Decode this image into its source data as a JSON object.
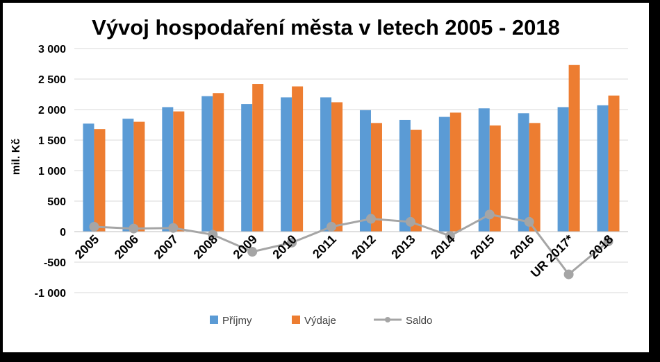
{
  "chart_data": {
    "type": "bar",
    "title": "Vývoj hospodaření města v letech 2005 - 2018",
    "xlabel": "",
    "ylabel": "mil. Kč",
    "ylim": [
      -1000,
      3000
    ],
    "y_ticks": [
      -1000,
      -500,
      0,
      500,
      1000,
      1500,
      2000,
      2500,
      3000
    ],
    "y_tick_labels": [
      "-1 000",
      "-500",
      "0",
      "500",
      "1 000",
      "1 500",
      "2 000",
      "2 500",
      "3 000"
    ],
    "grid": true,
    "legend_position": "bottom",
    "categories": [
      "2005",
      "2006",
      "2007",
      "2008",
      "2009",
      "2010",
      "2011",
      "2012",
      "2013",
      "2014",
      "2015",
      "2016",
      "UR 2017*",
      "2018"
    ],
    "series": [
      {
        "name": "Příjmy",
        "type": "bar",
        "color": "#5B9BD5",
        "values": [
          1770,
          1850,
          2040,
          2220,
          2090,
          2200,
          2200,
          1990,
          1830,
          1880,
          2020,
          1940,
          2040,
          2070
        ]
      },
      {
        "name": "Výdaje",
        "type": "bar",
        "color": "#ED7D31",
        "values": [
          1680,
          1800,
          1970,
          2270,
          2420,
          2380,
          2120,
          1780,
          1670,
          1950,
          1740,
          1780,
          2730,
          2230
        ]
      },
      {
        "name": "Saldo",
        "type": "line",
        "color": "#A5A5A5",
        "values": [
          80,
          50,
          60,
          -50,
          -330,
          -180,
          80,
          210,
          160,
          -70,
          280,
          160,
          -700,
          -160
        ]
      }
    ]
  }
}
